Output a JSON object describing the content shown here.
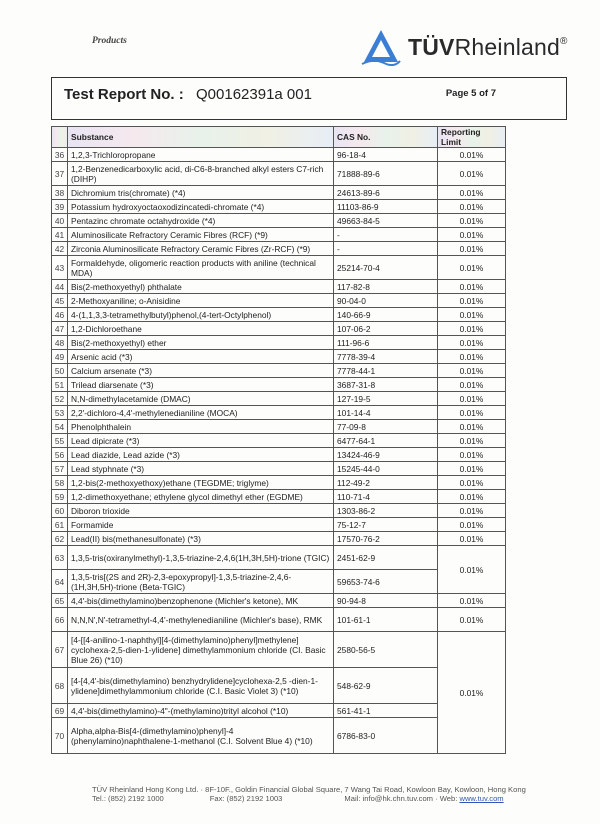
{
  "header": {
    "section": "Products",
    "brand_bold": "TÜV",
    "brand_rest": "Rheinland",
    "brand_mark": "®",
    "report_label": "Test Report No. :",
    "report_number": "Q00162391a 001",
    "page": "Page 5 of 7",
    "brand_color": "#3b7fd4"
  },
  "table": {
    "columns": [
      "",
      "Substance",
      "CAS No.",
      "Reporting Limit"
    ],
    "rows": [
      {
        "no": "36",
        "substance": "1,2,3-Trichloropropane",
        "cas": "96-18-4",
        "limit": "0.01%",
        "lines": 1
      },
      {
        "no": "37",
        "substance": "1,2-Benzenedicarboxylic acid, di-C6-8-branched alkyl esters C7-rich (DIHP)",
        "cas": "71888-89-6",
        "limit": "0.01%",
        "lines": 2
      },
      {
        "no": "38",
        "substance": "Dichromium tris(chromate) (*4)",
        "cas": "24613-89-6",
        "limit": "0.01%",
        "lines": 1
      },
      {
        "no": "39",
        "substance": "Potassium hydroxyoctaoxodizincatedi-chromate (*4)",
        "cas": "11103-86-9",
        "limit": "0.01%",
        "lines": 1
      },
      {
        "no": "40",
        "substance": "Pentazinc chromate octahydroxide (*4)",
        "cas": "49663-84-5",
        "limit": "0.01%",
        "lines": 1
      },
      {
        "no": "41",
        "substance": "Aluminosilicate Refractory Ceramic Fibres (RCF) (*9)",
        "cas": "-",
        "limit": "0.01%",
        "lines": 1
      },
      {
        "no": "42",
        "substance": "Zirconia Aluminosilicate Refractory Ceramic Fibres (Zr-RCF) (*9)",
        "cas": "-",
        "limit": "0.01%",
        "lines": 1
      },
      {
        "no": "43",
        "substance": "Formaldehyde, oligomeric reaction products with aniline (technical MDA)",
        "cas": "25214-70-4",
        "limit": "0.01%",
        "lines": 2
      },
      {
        "no": "44",
        "substance": "Bis(2-methoxyethyl) phthalate",
        "cas": "117-82-8",
        "limit": "0.01%",
        "lines": 1
      },
      {
        "no": "45",
        "substance": "2-Methoxyaniline; o-Anisidine",
        "cas": "90-04-0",
        "limit": "0.01%",
        "lines": 1
      },
      {
        "no": "46",
        "substance": "4-(1,1,3,3-tetramethylbutyl)phenol,(4-tert-Octylphenol)",
        "cas": "140-66-9",
        "limit": "0.01%",
        "lines": 1
      },
      {
        "no": "47",
        "substance": "1,2-Dichloroethane",
        "cas": "107-06-2",
        "limit": "0.01%",
        "lines": 1
      },
      {
        "no": "48",
        "substance": "Bis(2-methoxyethyl) ether",
        "cas": "111-96-6",
        "limit": "0.01%",
        "lines": 1
      },
      {
        "no": "49",
        "substance": "Arsenic acid (*3)",
        "cas": "7778-39-4",
        "limit": "0.01%",
        "lines": 1
      },
      {
        "no": "50",
        "substance": "Calcium arsenate (*3)",
        "cas": "7778-44-1",
        "limit": "0.01%",
        "lines": 1
      },
      {
        "no": "51",
        "substance": "Trilead diarsenate (*3)",
        "cas": "3687-31-8",
        "limit": "0.01%",
        "lines": 1
      },
      {
        "no": "52",
        "substance": "N,N-dimethylacetamide (DMAC)",
        "cas": "127-19-5",
        "limit": "0.01%",
        "lines": 1
      },
      {
        "no": "53",
        "substance": "2,2'-dichloro-4,4'-methylenedianiline (MOCA)",
        "cas": "101-14-4",
        "limit": "0.01%",
        "lines": 1
      },
      {
        "no": "54",
        "substance": "Phenolphthalein",
        "cas": "77-09-8",
        "limit": "0.01%",
        "lines": 1
      },
      {
        "no": "55",
        "substance": "Lead dipicrate (*3)",
        "cas": "6477-64-1",
        "limit": "0.01%",
        "lines": 1
      },
      {
        "no": "56",
        "substance": "Lead diazide, Lead azide (*3)",
        "cas": "13424-46-9",
        "limit": "0.01%",
        "lines": 1
      },
      {
        "no": "57",
        "substance": "Lead styphnate (*3)",
        "cas": "15245-44-0",
        "limit": "0.01%",
        "lines": 1
      },
      {
        "no": "58",
        "substance": "1,2-bis(2-methoxyethoxy)ethane (TEGDME; triglyme)",
        "cas": "112-49-2",
        "limit": "0.01%",
        "lines": 1
      },
      {
        "no": "59",
        "substance": "1,2-dimethoxyethane; ethylene glycol dimethyl ether (EGDME)",
        "cas": "110-71-4",
        "limit": "0.01%",
        "lines": 1
      },
      {
        "no": "60",
        "substance": "Diboron trioxide",
        "cas": "1303-86-2",
        "limit": "0.01%",
        "lines": 1
      },
      {
        "no": "61",
        "substance": "Formamide",
        "cas": "75-12-7",
        "limit": "0.01%",
        "lines": 1
      },
      {
        "no": "62",
        "substance": "Lead(II) bis(methanesulfonate) (*3)",
        "cas": "17570-76-2",
        "limit": "0.01%",
        "lines": 1
      },
      {
        "no": "63",
        "substance": "1,3,5-tris(oxiranylmethyl)-1,3,5-triazine-2,4,6(1H,3H,5H)-trione (TGIC)",
        "cas": "2451-62-9",
        "limit": "0.01%",
        "lines": 2
      },
      {
        "no": "64",
        "substance": "1,3,5-tris[(2S and 2R)-2,3-epoxypropyl]-1,3,5-triazine-2,4,6-(1H,3H,5H)-trione (Beta-TGIC)",
        "cas": "59653-74-6",
        "lines": 2
      },
      {
        "no": "65",
        "substance": "4,4'-bis(dimethylamino)benzophenone (Michler's ketone), MK",
        "cas": "90-94-8",
        "limit": "0.01%",
        "lines": 1
      },
      {
        "no": "66",
        "substance": "N,N,N',N'-tetramethyl-4,4'-methylenedianiline (Michler's base), RMK",
        "cas": "101-61-1",
        "limit": "0.01%",
        "lines": 2
      },
      {
        "no": "67",
        "substance": "[4-[[4-anilino-1-naphthyl][4-(dimethylamino)phenyl]methylene] cyclohexa-2,5-dien-1-ylidene] dimethylammonium chloride (CI. Basic Blue 26) (*10)",
        "cas": "2580-56-5",
        "limit": "0.01%",
        "lines": 3
      },
      {
        "no": "68",
        "substance": "[4-[4,4'-bis(dimethylamino) benzhydrylidene]cyclohexa-2,5 -dien-1-ylidene]dimethylammonium chloride (C.I. Basic Violet 3) (*10)",
        "cas": "548-62-9",
        "lines": 3
      },
      {
        "no": "69",
        "substance": "4,4'-bis(dimethylamino)-4\"-(methylamino)trityl alcohol (*10)",
        "cas": "561-41-1",
        "lines": 1
      },
      {
        "no": "70",
        "substance": "Alpha,alpha-Bis[4-(dimethylamino)phenyl]-4 (phenylamino)naphthalene-1-methanol (C.I. Solvent Blue 4) (*10)",
        "cas": "6786-83-0",
        "lines": 3
      }
    ]
  },
  "footer": {
    "line1": "TÜV Rheinland Hong Kong Ltd. · 8F-10F., Goldin Financial Global Square, 7 Wang Tai Road, Kowloon Bay, Kowloon, Hong Kong",
    "tel": "Tel.: (852) 2192 1000",
    "fax": "Fax: (852) 2192 1003",
    "mail": "Mail: info@hk.chn.tuv.com · Web:",
    "web": "www.tuv.com"
  }
}
